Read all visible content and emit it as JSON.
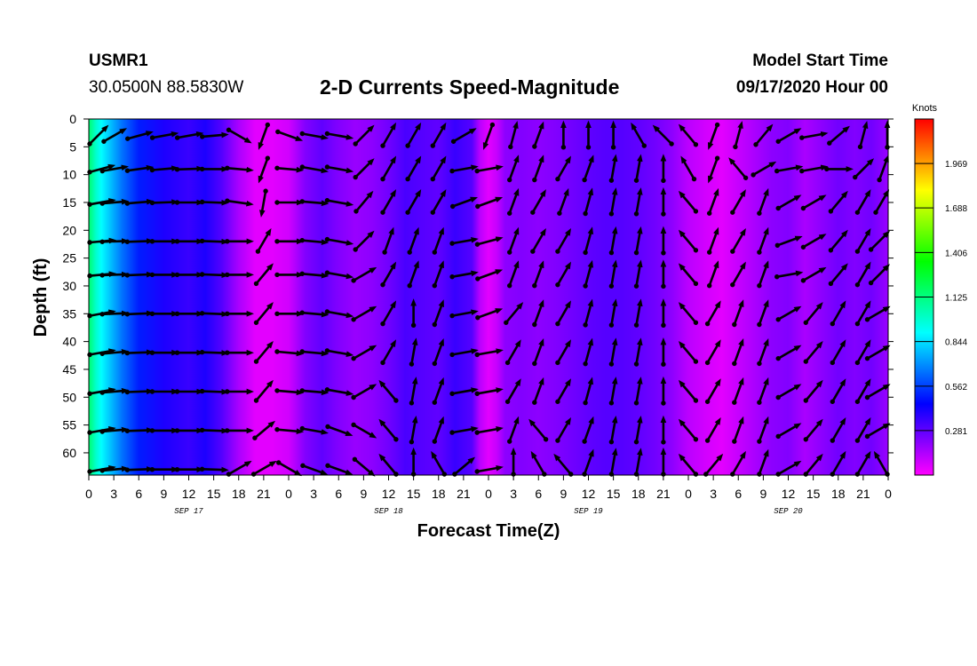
{
  "header": {
    "station": "USMR1",
    "location": "30.0500N 88.5830W",
    "title": "2-D Currents Speed-Magnitude",
    "start_label": "Model Start Time",
    "start_time": "09/17/2020 Hour 00"
  },
  "chart_data": {
    "type": "heatmap",
    "title": "2-D Currents Speed-Magnitude",
    "xlabel": "Forecast Time(Z)",
    "ylabel": "Depth (ft)",
    "x_unit": "hours from 09/17/2020 00Z",
    "xlim": [
      0,
      96
    ],
    "ylim": [
      0,
      64
    ],
    "y_inverted": true,
    "x_tick_labels": [
      "0",
      "3",
      "6",
      "9",
      "12",
      "15",
      "18",
      "21",
      "0",
      "3",
      "6",
      "9",
      "12",
      "15",
      "18",
      "21",
      "0",
      "3",
      "6",
      "9",
      "12",
      "15",
      "18",
      "21",
      "0",
      "3",
      "6",
      "9",
      "12",
      "15",
      "18",
      "21",
      "0"
    ],
    "y_ticks": [
      0,
      5,
      10,
      15,
      20,
      25,
      30,
      35,
      40,
      45,
      50,
      55,
      60
    ],
    "date_labels": [
      {
        "label": "SEP 17",
        "hour": 12
      },
      {
        "label": "SEP 18",
        "hour": 36
      },
      {
        "label": "SEP 19",
        "hour": 60
      },
      {
        "label": "SEP 20",
        "hour": 84
      }
    ],
    "colorbar": {
      "label": "Knots",
      "ticks": [
        0.281,
        0.562,
        0.844,
        1.125,
        1.406,
        1.688,
        1.969
      ],
      "range": [
        0,
        2.25
      ],
      "colors": [
        "#ff00ff",
        "#7f00ff",
        "#0000ff",
        "#0080ff",
        "#00ffff",
        "#00ff80",
        "#00ff00",
        "#80ff00",
        "#ffff00",
        "#ff8000",
        "#ff0000"
      ]
    },
    "speed_profile_knots": [
      [
        0,
        1.15
      ],
      [
        0.3,
        1.1
      ],
      [
        0.8,
        1.0
      ],
      [
        1.5,
        0.9
      ],
      [
        2.5,
        0.8
      ],
      [
        4,
        0.65
      ],
      [
        6,
        0.5
      ],
      [
        9,
        0.4
      ],
      [
        12,
        0.35
      ],
      [
        14,
        0.4
      ],
      [
        16,
        0.3
      ],
      [
        18,
        0.15
      ],
      [
        20,
        0.05
      ],
      [
        22,
        0.05
      ],
      [
        24,
        0.08
      ],
      [
        26,
        0.22
      ],
      [
        28,
        0.28
      ],
      [
        30,
        0.22
      ],
      [
        32,
        0.18
      ],
      [
        34,
        0.2
      ],
      [
        36,
        0.25
      ],
      [
        38,
        0.32
      ],
      [
        40,
        0.3
      ],
      [
        42,
        0.28
      ],
      [
        44,
        0.35
      ],
      [
        46,
        0.3
      ],
      [
        47,
        0.12
      ],
      [
        48,
        0.05
      ],
      [
        49,
        0.1
      ],
      [
        50,
        0.2
      ],
      [
        52,
        0.22
      ],
      [
        54,
        0.2
      ],
      [
        56,
        0.22
      ],
      [
        58,
        0.25
      ],
      [
        60,
        0.28
      ],
      [
        62,
        0.3
      ],
      [
        64,
        0.3
      ],
      [
        66,
        0.28
      ],
      [
        68,
        0.25
      ],
      [
        70,
        0.2
      ],
      [
        72,
        0.12
      ],
      [
        74,
        0.08
      ],
      [
        76,
        0.05
      ],
      [
        78,
        0.1
      ],
      [
        80,
        0.15
      ],
      [
        82,
        0.2
      ],
      [
        84,
        0.22
      ],
      [
        86,
        0.15
      ],
      [
        88,
        0.2
      ],
      [
        90,
        0.25
      ],
      [
        92,
        0.22
      ],
      [
        94,
        0.25
      ],
      [
        96,
        0.18
      ]
    ],
    "vector_times": [
      0,
      3,
      6,
      9,
      12,
      15,
      18,
      21,
      24,
      27,
      30,
      33,
      36,
      39,
      42,
      45,
      48,
      51,
      54,
      57,
      60,
      63,
      66,
      69,
      72,
      75,
      78,
      81,
      84,
      87,
      90,
      93,
      96
    ],
    "vector_depths": [
      3,
      9,
      15,
      22,
      28,
      35,
      42,
      49,
      56,
      63
    ],
    "vector_directions_deg": [
      [
        45,
        60,
        75,
        80,
        80,
        85,
        120,
        200,
        110,
        100,
        100,
        45,
        30,
        30,
        30,
        60,
        200,
        15,
        20,
        0,
        0,
        0,
        330,
        315,
        320,
        200,
        15,
        40,
        60,
        80,
        50,
        15,
        0
      ],
      [
        75,
        80,
        82,
        85,
        88,
        90,
        95,
        200,
        95,
        100,
        100,
        45,
        30,
        30,
        30,
        80,
        80,
        20,
        20,
        30,
        20,
        10,
        10,
        0,
        330,
        200,
        320,
        60,
        80,
        80,
        90,
        45,
        20
      ],
      [
        80,
        85,
        85,
        88,
        90,
        92,
        98,
        190,
        90,
        95,
        100,
        40,
        30,
        30,
        30,
        70,
        70,
        20,
        30,
        20,
        15,
        10,
        10,
        0,
        320,
        20,
        30,
        20,
        60,
        60,
        40,
        30,
        30
      ],
      [
        85,
        88,
        88,
        90,
        90,
        92,
        90,
        30,
        90,
        95,
        100,
        45,
        20,
        20,
        20,
        80,
        75,
        20,
        30,
        30,
        15,
        10,
        10,
        0,
        320,
        20,
        30,
        20,
        70,
        60,
        40,
        30,
        45
      ],
      [
        85,
        88,
        88,
        90,
        90,
        92,
        90,
        40,
        90,
        95,
        100,
        60,
        30,
        20,
        20,
        80,
        70,
        20,
        20,
        30,
        15,
        10,
        10,
        0,
        320,
        20,
        30,
        20,
        80,
        60,
        40,
        30,
        45
      ],
      [
        80,
        88,
        88,
        90,
        90,
        92,
        90,
        40,
        90,
        95,
        100,
        60,
        30,
        0,
        20,
        80,
        70,
        40,
        20,
        30,
        15,
        10,
        10,
        0,
        320,
        30,
        20,
        20,
        60,
        40,
        30,
        30,
        60
      ],
      [
        80,
        85,
        88,
        90,
        90,
        92,
        90,
        40,
        95,
        95,
        100,
        60,
        30,
        10,
        20,
        80,
        80,
        30,
        20,
        30,
        15,
        10,
        10,
        0,
        320,
        30,
        20,
        20,
        60,
        40,
        30,
        30,
        60
      ],
      [
        80,
        85,
        88,
        90,
        90,
        92,
        90,
        40,
        95,
        95,
        100,
        60,
        320,
        10,
        20,
        80,
        80,
        30,
        20,
        30,
        15,
        10,
        10,
        0,
        320,
        30,
        20,
        20,
        60,
        40,
        30,
        30,
        60
      ],
      [
        80,
        85,
        88,
        90,
        90,
        92,
        90,
        50,
        95,
        100,
        110,
        120,
        320,
        10,
        20,
        80,
        80,
        20,
        320,
        30,
        20,
        10,
        10,
        0,
        320,
        30,
        20,
        20,
        60,
        40,
        30,
        30,
        60
      ],
      [
        80,
        85,
        88,
        90,
        90,
        92,
        60,
        60,
        120,
        110,
        110,
        130,
        320,
        0,
        330,
        50,
        80,
        0,
        330,
        320,
        20,
        10,
        10,
        0,
        320,
        40,
        30,
        20,
        60,
        40,
        30,
        30,
        330
      ]
    ]
  }
}
